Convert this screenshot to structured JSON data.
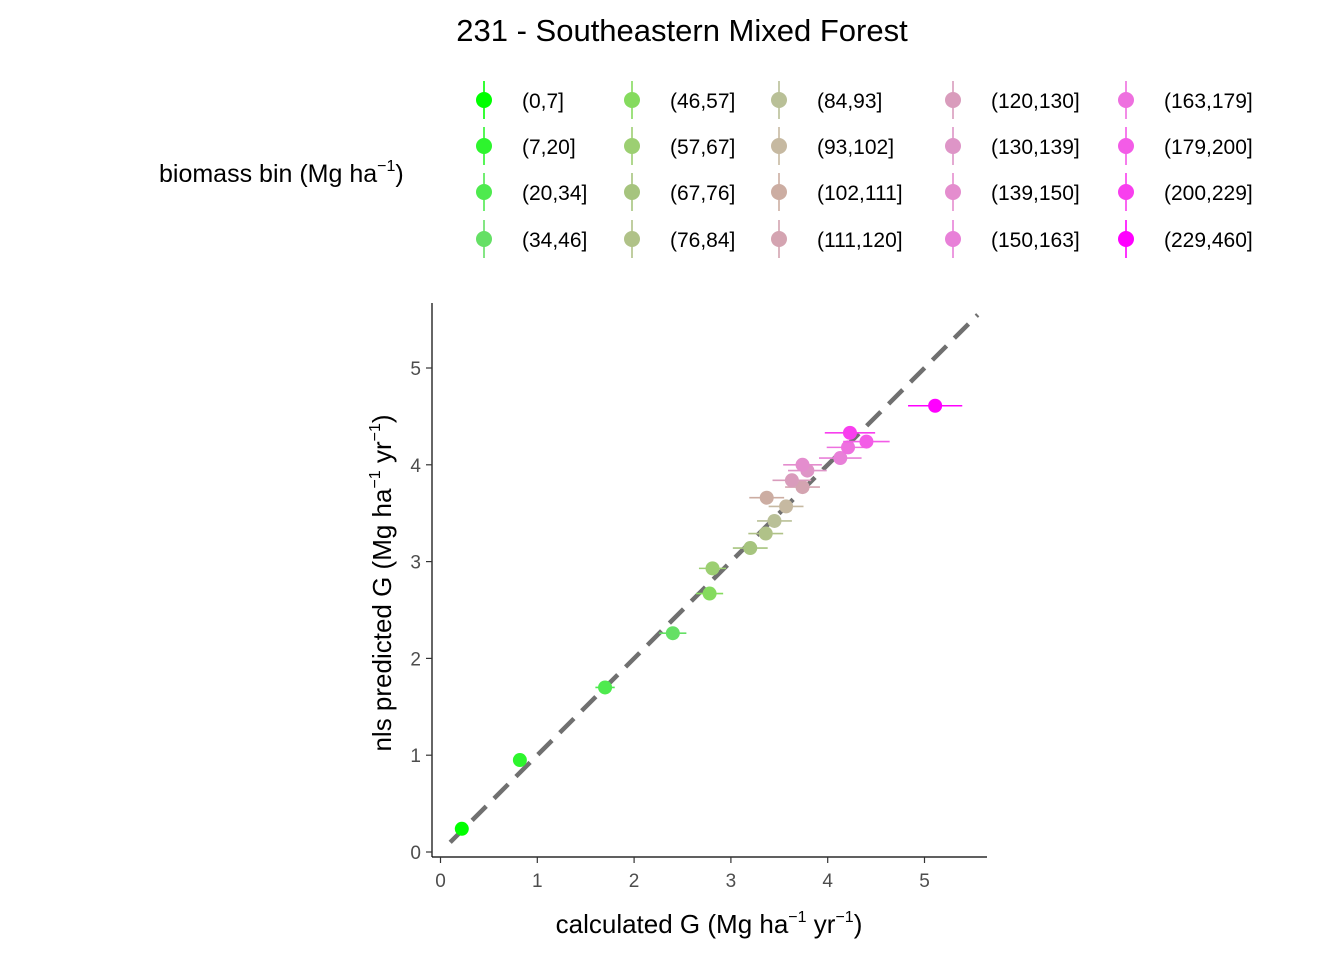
{
  "chart_data": {
    "type": "scatter",
    "title": "231 - Southeastern Mixed Forest",
    "xlabel": {
      "text": "calculated G (Mg ha",
      "sup1": "−1",
      "mid": " yr",
      "sup2": "−1",
      "end": ")"
    },
    "ylabel": {
      "text": "nls predicted G (Mg ha",
      "sup1": "−1",
      "mid": " yr",
      "sup2": "−1",
      "end": ")"
    },
    "xlim": [
      -0.05,
      5.6
    ],
    "ylim": [
      -0.05,
      5.6
    ],
    "x_ticks": [
      "0",
      "1",
      "2",
      "3",
      "4",
      "5"
    ],
    "y_ticks": [
      "0",
      "1",
      "2",
      "3",
      "4",
      "5"
    ],
    "reference_line": {
      "style": "dashed",
      "color": "#707070",
      "slope": 1,
      "intercept": 0
    },
    "legend": {
      "title": {
        "text": "biomass bin (Mg ha",
        "sup": "−1",
        "end": ")"
      },
      "placement": "top"
    },
    "series": [
      {
        "name": "(0,7]",
        "color": "#00FF00",
        "x": 0.22,
        "y": 0.24,
        "xerr": 0.06
      },
      {
        "name": "(7,20]",
        "color": "#2DF52D",
        "x": 0.82,
        "y": 0.95,
        "xerr": 0.05
      },
      {
        "name": "(20,34]",
        "color": "#4EEA4E",
        "x": 1.7,
        "y": 1.7,
        "xerr": 0.1
      },
      {
        "name": "(34,46]",
        "color": "#65E065",
        "x": 2.4,
        "y": 2.26,
        "xerr": 0.14
      },
      {
        "name": "(46,57]",
        "color": "#85DB5E",
        "x": 2.78,
        "y": 2.67,
        "xerr": 0.14
      },
      {
        "name": "(57,67]",
        "color": "#9CCF72",
        "x": 2.81,
        "y": 2.93,
        "xerr": 0.14
      },
      {
        "name": "(67,76]",
        "color": "#A6C47E",
        "x": 3.2,
        "y": 3.14,
        "xerr": 0.18
      },
      {
        "name": "(76,84]",
        "color": "#B0C288",
        "x": 3.36,
        "y": 3.29,
        "xerr": 0.18
      },
      {
        "name": "(84,93]",
        "color": "#B9C097",
        "x": 3.45,
        "y": 3.42,
        "xerr": 0.18
      },
      {
        "name": "(93,102]",
        "color": "#C6B9A1",
        "x": 3.57,
        "y": 3.57,
        "xerr": 0.18
      },
      {
        "name": "(102,111]",
        "color": "#CCADA2",
        "x": 3.37,
        "y": 3.66,
        "xerr": 0.18
      },
      {
        "name": "(111,120]",
        "color": "#D4A4B1",
        "x": 3.74,
        "y": 3.77,
        "xerr": 0.18
      },
      {
        "name": "(120,130]",
        "color": "#D99CBC",
        "x": 3.63,
        "y": 3.84,
        "xerr": 0.2
      },
      {
        "name": "(130,139]",
        "color": "#DE95C7",
        "x": 3.79,
        "y": 3.94,
        "xerr": 0.2
      },
      {
        "name": "(139,150]",
        "color": "#E48DCE",
        "x": 3.74,
        "y": 4.0,
        "xerr": 0.2
      },
      {
        "name": "(150,163]",
        "color": "#E880D8",
        "x": 4.13,
        "y": 4.07,
        "xerr": 0.22
      },
      {
        "name": "(163,179]",
        "color": "#EE70DF",
        "x": 4.21,
        "y": 4.18,
        "xerr": 0.22
      },
      {
        "name": "(179,200]",
        "color": "#F35CE7",
        "x": 4.4,
        "y": 4.24,
        "xerr": 0.24
      },
      {
        "name": "(200,229]",
        "color": "#F83FEE",
        "x": 4.23,
        "y": 4.33,
        "xerr": 0.26
      },
      {
        "name": "(229,460]",
        "color": "#FF00FF",
        "x": 5.11,
        "y": 4.61,
        "xerr": 0.28
      }
    ]
  }
}
